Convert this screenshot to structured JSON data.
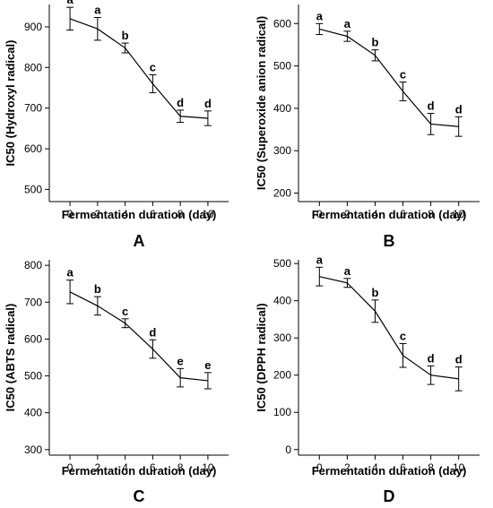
{
  "chart_data": [
    {
      "type": "line",
      "panel_label": "A",
      "xlabel": "Fermentation duration (day)",
      "ylabel": "IC50 (Hydroxyl radical)",
      "x": [
        0,
        2,
        4,
        6,
        8,
        10
      ],
      "xticks": [
        "0",
        "2",
        "4",
        "6",
        "8",
        "10"
      ],
      "xlim": [
        -1.5,
        11.5
      ],
      "ylim": [
        470,
        955
      ],
      "yticks": [
        500,
        600,
        700,
        800,
        900
      ],
      "values": [
        920,
        895,
        848,
        760,
        680,
        675
      ],
      "error": [
        28,
        28,
        12,
        22,
        15,
        18
      ],
      "letters": [
        "a",
        "a",
        "b",
        "c",
        "d",
        "d"
      ]
    },
    {
      "type": "line",
      "panel_label": "B",
      "xlabel": "Fermentation duration (day)",
      "ylabel": "IC50 (Superoxide anion radical)",
      "x": [
        0,
        2,
        4,
        6,
        8,
        10
      ],
      "xticks": [
        "0",
        "2",
        "4",
        "6",
        "8",
        "10"
      ],
      "xlim": [
        -1.5,
        11.5
      ],
      "ylim": [
        180,
        645
      ],
      "yticks": [
        200,
        300,
        400,
        500,
        600
      ],
      "values": [
        587,
        570,
        525,
        440,
        363,
        357
      ],
      "error": [
        13,
        12,
        13,
        22,
        25,
        23
      ],
      "letters": [
        "a",
        "a",
        "b",
        "c",
        "d",
        "d"
      ]
    },
    {
      "type": "line",
      "panel_label": "C",
      "xlabel": "Fermentation duration (day)",
      "ylabel": "IC50 (ABTS radical)",
      "x": [
        0,
        2,
        4,
        6,
        8,
        10
      ],
      "xticks": [
        "0",
        "2",
        "4",
        "6",
        "8",
        "10"
      ],
      "xlim": [
        -1.5,
        11.5
      ],
      "ylim": [
        285,
        815
      ],
      "yticks": [
        300,
        400,
        500,
        600,
        700,
        800
      ],
      "values": [
        728,
        690,
        643,
        573,
        495,
        487
      ],
      "error": [
        32,
        25,
        12,
        25,
        25,
        22
      ],
      "letters": [
        "a",
        "b",
        "c",
        "d",
        "e",
        "e"
      ]
    },
    {
      "type": "line",
      "panel_label": "D",
      "xlabel": "Fermentation duration (day)",
      "ylabel": "IC50 (DPPH radical)",
      "x": [
        0,
        2,
        4,
        6,
        8,
        10
      ],
      "xticks": [
        "0",
        "2",
        "4",
        "6",
        "8",
        "10"
      ],
      "xlim": [
        -1.5,
        11.5
      ],
      "ylim": [
        -15,
        510
      ],
      "yticks": [
        0,
        100,
        200,
        300,
        400,
        500
      ],
      "values": [
        465,
        448,
        372,
        253,
        200,
        190
      ],
      "error": [
        25,
        12,
        30,
        32,
        25,
        32
      ],
      "letters": [
        "a",
        "a",
        "b",
        "c",
        "d",
        "d"
      ]
    }
  ],
  "colors": {
    "line": "#000000",
    "axis": "#000000",
    "background": "#ffffff"
  }
}
